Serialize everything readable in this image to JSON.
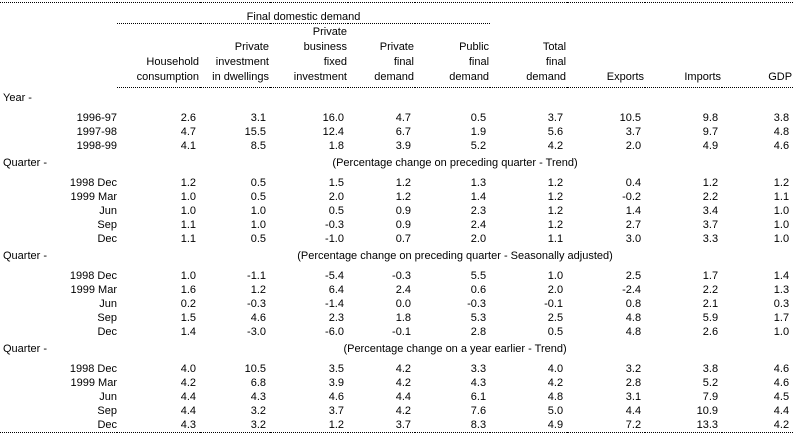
{
  "colors": {
    "background": "#ffffff",
    "text": "#000000",
    "rule": "#000000"
  },
  "chart_data": {
    "type": "table",
    "group_header": "Final domestic demand",
    "group_header_spans_columns": [
      "Household consumption",
      "Private investment in dwellings",
      "Private business fixed investment",
      "Private final demand",
      "Public final demand"
    ],
    "columns": [
      "Household\nconsumption",
      "Private\ninvestment\nin dwellings",
      "Private\nbusiness\nfixed\ninvestment",
      "Private\nfinal\ndemand",
      "Public\nfinal\ndemand",
      "Total\nfinal\ndemand",
      "Exports",
      "Imports",
      "GDP"
    ],
    "sections": [
      {
        "label": "Year -",
        "caption": "",
        "rows": [
          {
            "period": "1996-97",
            "values": [
              "2.6",
              "3.1",
              "16.0",
              "4.7",
              "0.5",
              "3.7",
              "10.5",
              "9.8",
              "3.8"
            ]
          },
          {
            "period": "1997-98",
            "values": [
              "4.7",
              "15.5",
              "12.4",
              "6.7",
              "1.9",
              "5.6",
              "3.7",
              "9.7",
              "4.8"
            ]
          },
          {
            "period": "1998-99",
            "values": [
              "4.1",
              "8.5",
              "1.8",
              "3.9",
              "5.2",
              "4.2",
              "2.0",
              "4.9",
              "4.6"
            ]
          }
        ]
      },
      {
        "label": "Quarter -",
        "caption": "(Percentage change on preceding quarter - Trend)",
        "rows": [
          {
            "period": "1998 Dec",
            "values": [
              "1.2",
              "0.5",
              "1.5",
              "1.2",
              "1.3",
              "1.2",
              "0.4",
              "1.2",
              "1.2"
            ]
          },
          {
            "period": "1999 Mar",
            "values": [
              "1.0",
              "0.5",
              "2.0",
              "1.2",
              "1.4",
              "1.2",
              "-0.2",
              "2.2",
              "1.1"
            ]
          },
          {
            "period": "Jun",
            "values": [
              "1.0",
              "1.0",
              "0.5",
              "0.9",
              "2.3",
              "1.2",
              "1.4",
              "3.4",
              "1.0"
            ]
          },
          {
            "period": "Sep",
            "values": [
              "1.1",
              "1.0",
              "-0.3",
              "0.9",
              "2.4",
              "1.2",
              "2.7",
              "3.7",
              "1.0"
            ]
          },
          {
            "period": "Dec",
            "values": [
              "1.1",
              "0.5",
              "-1.0",
              "0.7",
              "2.0",
              "1.1",
              "3.0",
              "3.3",
              "1.0"
            ]
          }
        ]
      },
      {
        "label": "Quarter -",
        "caption": "(Percentage change on preceding quarter - Seasonally adjusted)",
        "rows": [
          {
            "period": "1998 Dec",
            "values": [
              "1.0",
              "-1.1",
              "-5.4",
              "-0.3",
              "5.5",
              "1.0",
              "2.5",
              "1.7",
              "1.4"
            ]
          },
          {
            "period": "1999 Mar",
            "values": [
              "1.6",
              "1.2",
              "6.4",
              "2.4",
              "0.6",
              "2.0",
              "-2.4",
              "2.2",
              "1.3"
            ]
          },
          {
            "period": "Jun",
            "values": [
              "0.2",
              "-0.3",
              "-1.4",
              "0.0",
              "-0.3",
              "-0.1",
              "0.8",
              "2.1",
              "0.3"
            ]
          },
          {
            "period": "Sep",
            "values": [
              "1.5",
              "4.6",
              "2.3",
              "1.8",
              "5.3",
              "2.5",
              "4.8",
              "5.9",
              "1.7"
            ]
          },
          {
            "period": "Dec",
            "values": [
              "1.4",
              "-3.0",
              "-6.0",
              "-0.1",
              "2.8",
              "0.5",
              "4.8",
              "2.6",
              "1.0"
            ]
          }
        ]
      },
      {
        "label": "Quarter -",
        "caption": "(Percentage change on a year earlier - Trend)",
        "rows": [
          {
            "period": "1998 Dec",
            "values": [
              "4.0",
              "10.5",
              "3.5",
              "4.2",
              "3.3",
              "4.0",
              "3.2",
              "3.8",
              "4.6"
            ]
          },
          {
            "period": "1999 Mar",
            "values": [
              "4.2",
              "6.8",
              "3.9",
              "4.2",
              "4.3",
              "4.2",
              "2.8",
              "5.2",
              "4.6"
            ]
          },
          {
            "period": "Jun",
            "values": [
              "4.4",
              "4.3",
              "4.6",
              "4.4",
              "6.1",
              "4.8",
              "3.1",
              "7.9",
              "4.5"
            ]
          },
          {
            "period": "Sep",
            "values": [
              "4.4",
              "3.2",
              "3.7",
              "4.2",
              "7.6",
              "5.0",
              "4.4",
              "10.9",
              "4.4"
            ]
          },
          {
            "period": "Dec",
            "values": [
              "4.3",
              "3.2",
              "1.2",
              "3.7",
              "8.3",
              "4.9",
              "7.2",
              "13.3",
              "4.2"
            ]
          }
        ]
      }
    ]
  }
}
